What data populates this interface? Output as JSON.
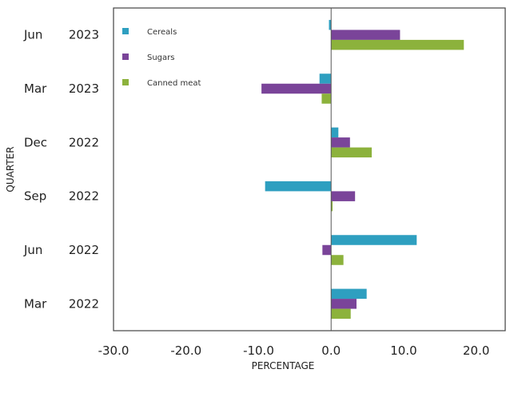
{
  "chart_data": {
    "type": "bar",
    "orientation": "horizontal",
    "categories": [
      "Mar 2022",
      "Jun 2022",
      "Sep 2022",
      "Dec 2022",
      "Mar 2023",
      "Jun 2023"
    ],
    "category_labels": [
      {
        "month": "Mar",
        "year": "2022"
      },
      {
        "month": "Jun",
        "year": "2022"
      },
      {
        "month": "Sep",
        "year": "2022"
      },
      {
        "month": "Dec",
        "year": "2022"
      },
      {
        "month": "Mar",
        "year": "2023"
      },
      {
        "month": "Jun",
        "year": "2023"
      }
    ],
    "series": [
      {
        "name": "Cereals",
        "color": "#2e9fc0",
        "values": [
          4.9,
          11.8,
          -9.1,
          1.0,
          -1.6,
          -0.3
        ]
      },
      {
        "name": "Sugars",
        "color": "#7a4499",
        "values": [
          3.5,
          -1.2,
          3.3,
          2.6,
          -9.6,
          9.5
        ]
      },
      {
        "name": "Canned meat",
        "color": "#8cb23c",
        "values": [
          2.7,
          1.7,
          0.2,
          5.6,
          -1.3,
          18.3
        ]
      }
    ],
    "xlabel": "PERCENTAGE",
    "ylabel": "QUARTER",
    "xlim": [
      -30,
      24
    ],
    "xticks": [
      "-30.0",
      "-20.0",
      "-10.0",
      "0.0",
      "10.0",
      "20.0"
    ],
    "xtick_values": [
      -30,
      -20,
      -10,
      0,
      10,
      20
    ],
    "grid": false,
    "legend_position": "top-left"
  }
}
